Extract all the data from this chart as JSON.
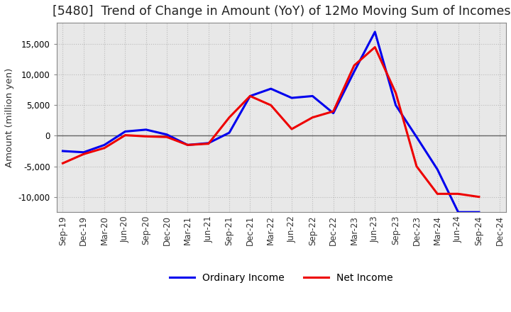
{
  "title": "[5480]  Trend of Change in Amount (YoY) of 12Mo Moving Sum of Incomes",
  "ylabel": "Amount (million yen)",
  "x_labels": [
    "Sep-19",
    "Dec-19",
    "Mar-20",
    "Jun-20",
    "Sep-20",
    "Dec-20",
    "Mar-21",
    "Jun-21",
    "Sep-21",
    "Dec-21",
    "Mar-22",
    "Jun-22",
    "Sep-22",
    "Dec-22",
    "Mar-23",
    "Jun-23",
    "Sep-23",
    "Dec-23",
    "Mar-24",
    "Jun-24",
    "Sep-24",
    "Dec-24"
  ],
  "ordinary_income": [
    -2500,
    -2700,
    -1500,
    700,
    1000,
    200,
    -1500,
    -1200,
    500,
    6500,
    7700,
    6200,
    6500,
    3700,
    10500,
    17000,
    5000,
    -200,
    -5500,
    -12500,
    -12500,
    null
  ],
  "net_income": [
    -4500,
    -3000,
    -2000,
    100,
    -100,
    -200,
    -1500,
    -1300,
    3000,
    6500,
    5000,
    1100,
    3000,
    4000,
    11500,
    14500,
    7000,
    -5000,
    -9500,
    -9500,
    -10000,
    null
  ],
  "ordinary_color": "#0000ee",
  "net_color": "#ee0000",
  "ylim": [
    -12500,
    18500
  ],
  "yticks": [
    -10000,
    -5000,
    0,
    5000,
    10000,
    15000
  ],
  "plot_bg_color": "#e8e8e8",
  "fig_bg_color": "#ffffff",
  "grid_color": "#ffffff",
  "grid_dot_color": "#bbbbbb",
  "line_width": 2.2,
  "legend_ordinary": "Ordinary Income",
  "legend_net": "Net Income",
  "title_fontsize": 12.5,
  "axis_fontsize": 9.5,
  "tick_fontsize": 8.5,
  "legend_fontsize": 10
}
